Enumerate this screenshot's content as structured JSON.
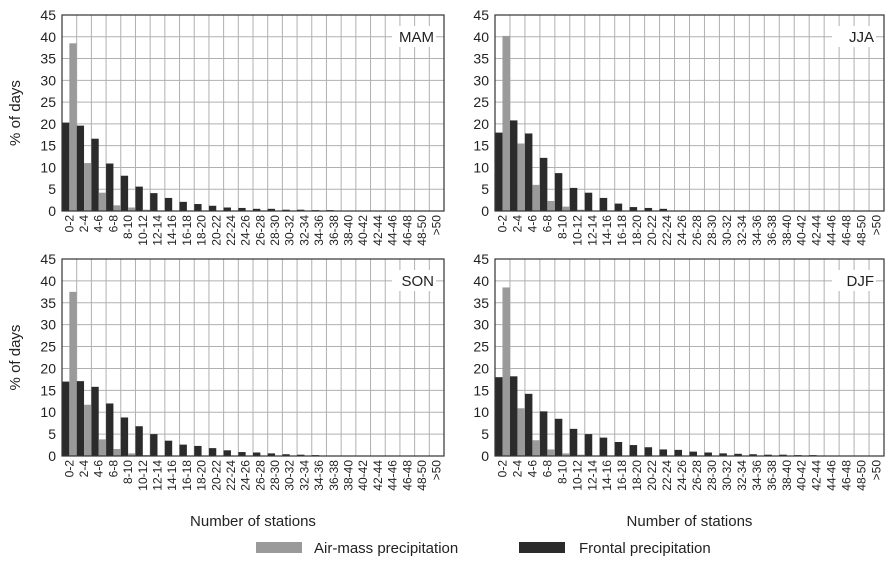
{
  "colors": {
    "air_mass": "#9a9a9a",
    "frontal": "#2b2b2b",
    "grid": "#b0b0b0",
    "frame": "#333333"
  },
  "chart_data": [
    {
      "type": "bar",
      "title": "MAM",
      "xlabel": "",
      "ylabel": "% of days",
      "ylim": [
        0,
        45
      ],
      "yticks": [
        0,
        5,
        10,
        15,
        20,
        25,
        30,
        35,
        40,
        45
      ],
      "grid": true,
      "categories": [
        "0-2",
        "2-4",
        "4-6",
        "6-8",
        "8-10",
        "10-12",
        "12-14",
        "14-16",
        "16-18",
        "18-20",
        "20-22",
        "22-24",
        "24-26",
        "26-28",
        "28-30",
        "30-32",
        "32-34",
        "34-36",
        "36-38",
        "38-40",
        "40-42",
        "42-44",
        "44-46",
        "46-48",
        "48-50",
        ">50"
      ],
      "series": [
        {
          "name": "Frontal precipitation",
          "values": [
            20.3,
            19.6,
            16.6,
            10.9,
            8.1,
            5.6,
            4.1,
            3.0,
            2.1,
            1.6,
            1.2,
            0.8,
            0.7,
            0.5,
            0.5,
            0.3,
            0.3,
            0.2,
            0.2,
            0.1,
            0.1,
            0,
            0,
            0,
            0,
            0
          ]
        },
        {
          "name": "Air-mass precipitation",
          "values": [
            38.5,
            11.0,
            4.2,
            1.3,
            0.8,
            0.3,
            0.1,
            0,
            0,
            0,
            0,
            0,
            0,
            0,
            0,
            0,
            0,
            0,
            0,
            0,
            0,
            0,
            0,
            0,
            0,
            0
          ]
        }
      ]
    },
    {
      "type": "bar",
      "title": "JJA",
      "xlabel": "",
      "ylabel": "",
      "ylim": [
        0,
        45
      ],
      "yticks": [
        0,
        5,
        10,
        15,
        20,
        25,
        30,
        35,
        40,
        45
      ],
      "grid": true,
      "categories": [
        "0-2",
        "2-4",
        "4-6",
        "6-8",
        "8-10",
        "10-12",
        "12-14",
        "14-16",
        "16-18",
        "18-20",
        "20-22",
        "22-24",
        "24-26",
        "26-28",
        "28-30",
        "30-32",
        "32-34",
        "34-36",
        "36-38",
        "38-40",
        "40-42",
        "42-44",
        "44-46",
        "46-48",
        "48-50",
        ">50"
      ],
      "series": [
        {
          "name": "Frontal precipitation",
          "values": [
            18.0,
            20.8,
            17.8,
            12.2,
            8.7,
            5.3,
            4.2,
            3.0,
            1.7,
            0.9,
            0.7,
            0.5,
            0,
            0,
            0,
            0,
            0,
            0,
            0,
            0,
            0,
            0,
            0,
            0,
            0,
            0
          ]
        },
        {
          "name": "Air-mass precipitation",
          "values": [
            40.2,
            15.5,
            6.0,
            2.3,
            1.0,
            0.3,
            0.1,
            0,
            0,
            0,
            0,
            0,
            0,
            0,
            0,
            0,
            0,
            0,
            0,
            0,
            0,
            0,
            0,
            0,
            0,
            0
          ]
        }
      ]
    },
    {
      "type": "bar",
      "title": "SON",
      "xlabel": "Number of stations",
      "ylabel": "% of days",
      "ylim": [
        0,
        45
      ],
      "yticks": [
        0,
        5,
        10,
        15,
        20,
        25,
        30,
        35,
        40,
        45
      ],
      "grid": true,
      "categories": [
        "0-2",
        "2-4",
        "4-6",
        "6-8",
        "8-10",
        "10-12",
        "12-14",
        "14-16",
        "16-18",
        "18-20",
        "20-22",
        "22-24",
        "24-26",
        "26-28",
        "28-30",
        "30-32",
        "32-34",
        "34-36",
        "36-38",
        "38-40",
        "40-42",
        "42-44",
        "44-46",
        "46-48",
        "48-50",
        ">50"
      ],
      "series": [
        {
          "name": "Frontal precipitation",
          "values": [
            17.0,
            17.1,
            15.8,
            12.0,
            8.8,
            6.8,
            5.0,
            3.5,
            2.6,
            2.3,
            1.8,
            1.3,
            0.9,
            0.8,
            0.6,
            0.4,
            0.3,
            0.2,
            0.1,
            0.1,
            0.1,
            0.1,
            0,
            0,
            0,
            0
          ]
        },
        {
          "name": "Air-mass precipitation",
          "values": [
            37.5,
            11.7,
            3.8,
            1.6,
            0.6,
            0.2,
            0.1,
            0,
            0,
            0,
            0,
            0,
            0,
            0,
            0,
            0,
            0,
            0,
            0,
            0,
            0,
            0,
            0,
            0,
            0,
            0
          ]
        }
      ]
    },
    {
      "type": "bar",
      "title": "DJF",
      "xlabel": "Number of stations",
      "ylabel": "",
      "ylim": [
        0,
        45
      ],
      "yticks": [
        0,
        5,
        10,
        15,
        20,
        25,
        30,
        35,
        40,
        45
      ],
      "grid": true,
      "categories": [
        "0-2",
        "2-4",
        "4-6",
        "6-8",
        "8-10",
        "10-12",
        "12-14",
        "14-16",
        "16-18",
        "18-20",
        "20-22",
        "22-24",
        "24-26",
        "26-28",
        "28-30",
        "30-32",
        "32-34",
        "34-36",
        "36-38",
        "38-40",
        "40-42",
        "42-44",
        "44-46",
        "46-48",
        "48-50",
        ">50"
      ],
      "series": [
        {
          "name": "Frontal precipitation",
          "values": [
            18.0,
            18.2,
            14.2,
            10.2,
            8.5,
            6.2,
            5.0,
            4.2,
            3.2,
            2.5,
            2.0,
            1.5,
            1.4,
            1.0,
            0.8,
            0.6,
            0.5,
            0.4,
            0.3,
            0.3,
            0.2,
            0.2,
            0.1,
            0.1,
            0.1,
            0.1
          ]
        },
        {
          "name": "Air-mass precipitation",
          "values": [
            38.5,
            10.9,
            3.6,
            1.5,
            0.6,
            0.3,
            0.1,
            0,
            0,
            0,
            0,
            0,
            0,
            0,
            0,
            0,
            0,
            0,
            0,
            0,
            0,
            0,
            0,
            0,
            0,
            0
          ]
        }
      ]
    }
  ],
  "legend": {
    "placement": "bottom-center",
    "items": [
      {
        "label": "Air-mass precipitation",
        "series": "Air-mass precipitation"
      },
      {
        "label": "Frontal precipitation",
        "series": "Frontal precipitation"
      }
    ]
  }
}
